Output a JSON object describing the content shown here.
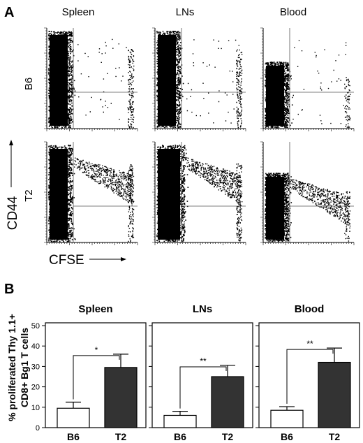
{
  "panel_a": {
    "letter": "A",
    "columns": [
      "Spleen",
      "LNs",
      "Blood"
    ],
    "rows": [
      "B6",
      "T2"
    ],
    "y_axis_label": "CD44",
    "x_axis_label": "CFSE"
  },
  "panel_b": {
    "letter": "B",
    "ylabel_line1": "% proliferated Thy 1.1+",
    "ylabel_line2": "CD8+ Bg1 T cells"
  },
  "chart_data": [
    {
      "type": "scatter",
      "kind": "flow-cytometry-dot-plots",
      "x_label": "CFSE",
      "y_label": "CD44",
      "columns": [
        "Spleen",
        "LNs",
        "Blood"
      ],
      "rows": [
        "B6",
        "T2"
      ],
      "note": "dense undivided population at low CFSE; divided cells spread toward high CFSE; quadrant gates shown"
    },
    {
      "type": "bar",
      "title": "Spleen",
      "categories": [
        "B6",
        "T2"
      ],
      "values": [
        9.5,
        29.5
      ],
      "errors": [
        3,
        6.5
      ],
      "colors": [
        "#ffffff",
        "#333333"
      ],
      "significance": "*",
      "ylim": [
        0,
        50
      ],
      "yticks": [
        0,
        10,
        20,
        30,
        40,
        50
      ]
    },
    {
      "type": "bar",
      "title": "LNs",
      "categories": [
        "B6",
        "T2"
      ],
      "values": [
        6,
        25
      ],
      "errors": [
        2,
        5.5
      ],
      "colors": [
        "#ffffff",
        "#333333"
      ],
      "significance": "**",
      "ylim": [
        0,
        50
      ],
      "yticks": [
        0,
        10,
        20,
        30,
        40,
        50
      ]
    },
    {
      "type": "bar",
      "title": "Blood",
      "categories": [
        "B6",
        "T2"
      ],
      "values": [
        8.5,
        32
      ],
      "errors": [
        1.8,
        7
      ],
      "colors": [
        "#ffffff",
        "#333333"
      ],
      "significance": "**",
      "ylim": [
        0,
        50
      ],
      "yticks": [
        0,
        10,
        20,
        30,
        40,
        50
      ]
    }
  ]
}
